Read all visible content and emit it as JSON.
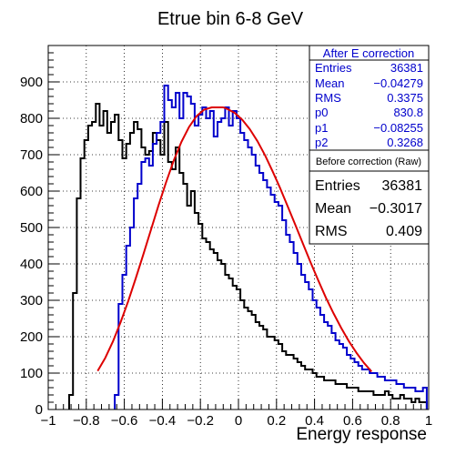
{
  "chart_data": {
    "type": "histogram",
    "title": "Etrue bin 6-8 GeV",
    "xlabel": "Energy response",
    "ylabel": "",
    "xlim": [
      -1,
      1
    ],
    "ylim": [
      0,
      1000
    ],
    "grid": true,
    "x_ticks": [
      "−1",
      "−0.8",
      "−0.6",
      "−0.4",
      "−0.2",
      "0",
      "0.2",
      "0.4",
      "0.6",
      "0.8",
      "1"
    ],
    "y_ticks": [
      "0",
      "100",
      "200",
      "300",
      "400",
      "500",
      "600",
      "700",
      "800",
      "900"
    ],
    "series": [
      {
        "color": "#000000",
        "bin_edges": [
          -1.0,
          0.02
        ],
        "x": [
          -0.88,
          -0.86,
          -0.84,
          -0.82,
          -0.8,
          -0.78,
          -0.76,
          -0.74,
          -0.72,
          -0.7,
          -0.68,
          -0.66,
          -0.64,
          -0.62,
          -0.6,
          -0.58,
          -0.56,
          -0.54,
          -0.52,
          -0.5,
          -0.48,
          -0.46,
          -0.44,
          -0.42,
          -0.4,
          -0.38,
          -0.36,
          -0.34,
          -0.32,
          -0.3,
          -0.28,
          -0.26,
          -0.24,
          -0.22,
          -0.2,
          -0.18,
          -0.16,
          -0.14,
          -0.12,
          -0.1,
          -0.08,
          -0.06,
          -0.04,
          -0.02,
          0.0,
          0.02,
          0.04,
          0.06,
          0.08,
          0.1,
          0.12,
          0.14,
          0.16,
          0.18,
          0.2,
          0.22,
          0.24,
          0.26,
          0.28,
          0.3,
          0.32,
          0.34,
          0.36,
          0.38,
          0.4,
          0.42,
          0.44,
          0.46,
          0.48,
          0.5,
          0.52,
          0.54,
          0.56,
          0.58,
          0.6,
          0.62,
          0.64,
          0.66,
          0.68,
          0.7,
          0.72,
          0.74,
          0.76,
          0.78,
          0.8,
          0.82,
          0.84,
          0.86,
          0.88,
          0.9,
          0.92,
          0.94,
          0.96,
          0.98
        ],
        "values": [
          40,
          320,
          580,
          690,
          740,
          780,
          790,
          840,
          780,
          820,
          760,
          790,
          810,
          740,
          690,
          730,
          760,
          790,
          770,
          720,
          700,
          710,
          760,
          740,
          700,
          790,
          680,
          660,
          720,
          650,
          620,
          560,
          600,
          540,
          510,
          470,
          460,
          440,
          430,
          410,
          400,
          370,
          360,
          340,
          330,
          300,
          280,
          270,
          260,
          240,
          230,
          220,
          200,
          200,
          190,
          180,
          160,
          150,
          150,
          140,
          130,
          120,
          110,
          110,
          100,
          90,
          90,
          80,
          80,
          80,
          70,
          70,
          70,
          60,
          60,
          60,
          50,
          50,
          50,
          50,
          40,
          40,
          40,
          50,
          40,
          30,
          30,
          40,
          30,
          30,
          20,
          30,
          20,
          20
        ]
      },
      {
        "color": "#0000cc",
        "bin_edges": [
          -1.0,
          0.02
        ],
        "x": [
          -0.64,
          -0.62,
          -0.6,
          -0.58,
          -0.56,
          -0.54,
          -0.52,
          -0.5,
          -0.48,
          -0.46,
          -0.44,
          -0.42,
          -0.4,
          -0.38,
          -0.36,
          -0.34,
          -0.32,
          -0.3,
          -0.28,
          -0.26,
          -0.24,
          -0.22,
          -0.2,
          -0.18,
          -0.16,
          -0.14,
          -0.12,
          -0.1,
          -0.08,
          -0.06,
          -0.04,
          -0.02,
          0.0,
          0.02,
          0.04,
          0.06,
          0.08,
          0.1,
          0.12,
          0.14,
          0.16,
          0.18,
          0.2,
          0.22,
          0.24,
          0.26,
          0.28,
          0.3,
          0.32,
          0.34,
          0.36,
          0.38,
          0.4,
          0.42,
          0.44,
          0.46,
          0.48,
          0.5,
          0.52,
          0.54,
          0.56,
          0.58,
          0.6,
          0.62,
          0.64,
          0.66,
          0.68,
          0.7,
          0.72,
          0.74,
          0.76,
          0.78,
          0.8,
          0.82,
          0.84,
          0.86,
          0.88,
          0.9,
          0.92,
          0.94,
          0.96,
          0.98
        ],
        "values": [
          40,
          290,
          370,
          450,
          500,
          580,
          620,
          680,
          690,
          670,
          730,
          760,
          790,
          890,
          850,
          830,
          870,
          800,
          870,
          860,
          840,
          780,
          810,
          830,
          800,
          820,
          750,
          790,
          800,
          830,
          780,
          820,
          800,
          760,
          740,
          720,
          700,
          670,
          650,
          630,
          610,
          590,
          570,
          560,
          520,
          480,
          460,
          430,
          400,
          370,
          350,
          330,
          300,
          280,
          260,
          240,
          230,
          210,
          190,
          180,
          170,
          150,
          140,
          130,
          120,
          110,
          110,
          100,
          100,
          90,
          90,
          80,
          80,
          80,
          70,
          70,
          60,
          60,
          60,
          50,
          50,
          60
        ]
      },
      {
        "type": "line",
        "color": "#dd0000",
        "x": [
          -0.74,
          -0.7,
          -0.66,
          -0.62,
          -0.58,
          -0.54,
          -0.5,
          -0.46,
          -0.42,
          -0.38,
          -0.34,
          -0.3,
          -0.26,
          -0.22,
          -0.18,
          -0.14,
          -0.1,
          -0.08,
          -0.06,
          -0.02,
          0.02,
          0.06,
          0.1,
          0.14,
          0.18,
          0.22,
          0.26,
          0.3,
          0.34,
          0.38,
          0.42,
          0.46,
          0.5,
          0.54,
          0.58,
          0.62,
          0.66,
          0.7
        ],
        "values": [
          106,
          142,
          187,
          239,
          297,
          360,
          426,
          494,
          561,
          625,
          684,
          735,
          776,
          806,
          824,
          830,
          830,
          830,
          826,
          815,
          796,
          770,
          737,
          698,
          654,
          607,
          557,
          506,
          454,
          403,
          354,
          307,
          264,
          224,
          188,
          156,
          128,
          104
        ]
      }
    ],
    "stats_boxes": [
      {
        "title": "After E correction",
        "rows": [
          {
            "label": "Entries",
            "value": "36381"
          },
          {
            "label": "Mean",
            "value": "−0.04279"
          },
          {
            "label": "RMS",
            "value": "0.3375"
          },
          {
            "label": "p0",
            "value": "830.8"
          },
          {
            "label": "p1",
            "value": "−0.08255"
          },
          {
            "label": "p2",
            "value": "0.3268"
          }
        ]
      },
      {
        "title": "Before correction (Raw)",
        "rows": [
          {
            "label": "Entries",
            "value": "36381"
          },
          {
            "label": "Mean",
            "value": "−0.3017"
          },
          {
            "label": "RMS",
            "value": "0.409"
          }
        ]
      }
    ]
  }
}
